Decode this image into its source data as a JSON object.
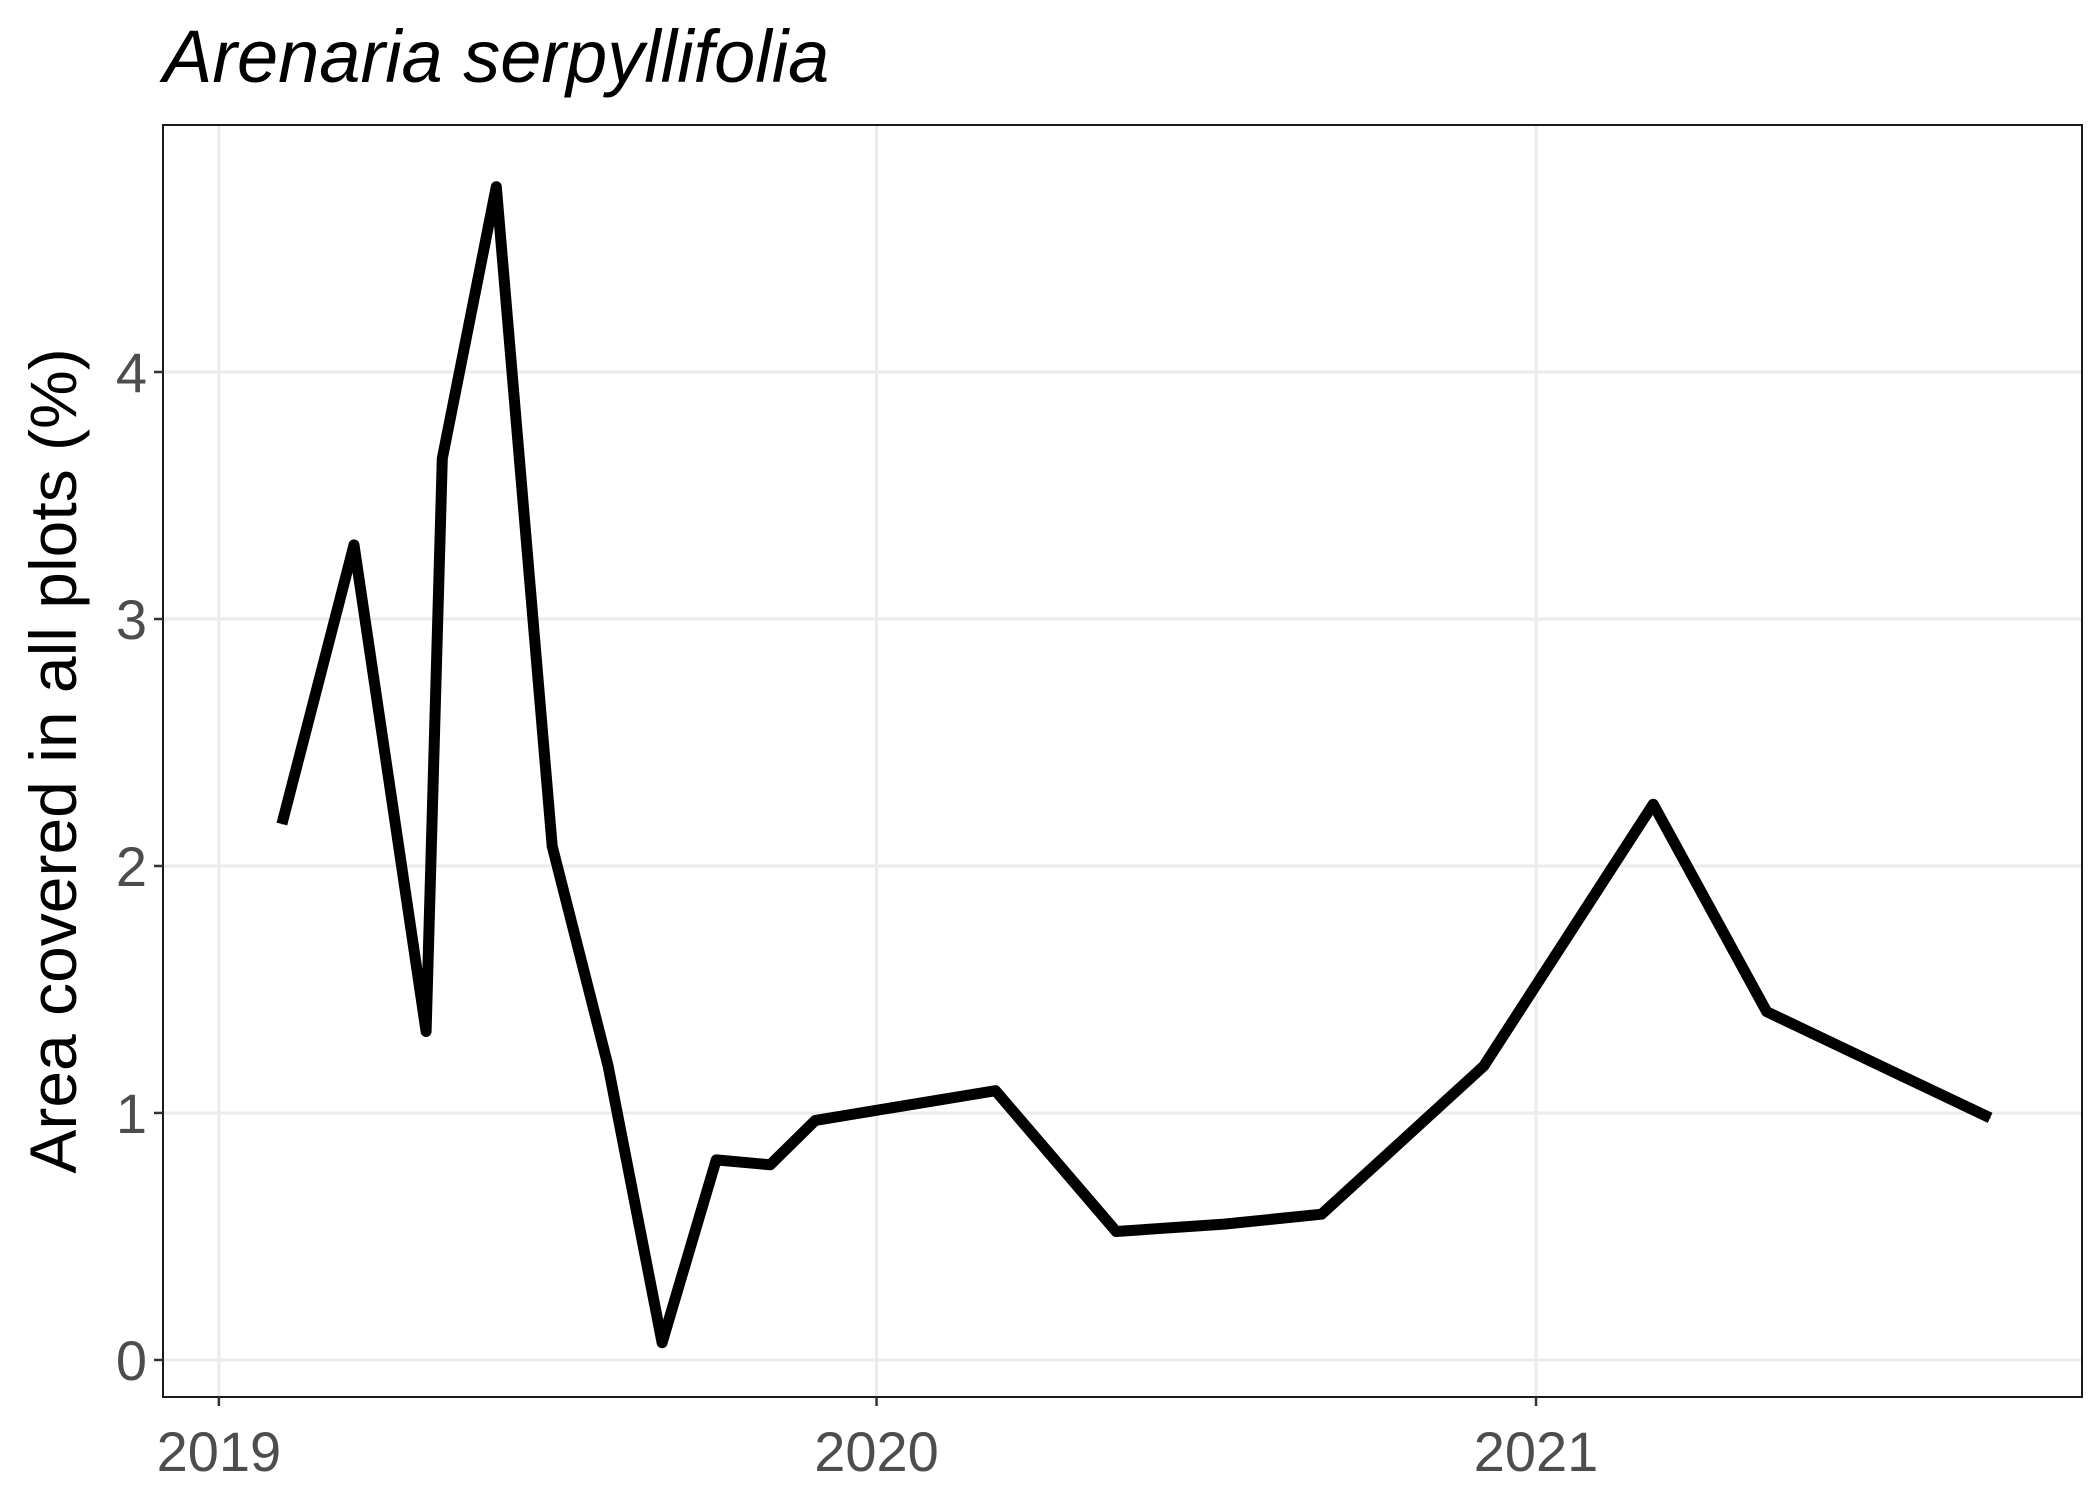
{
  "chart_data": {
    "type": "line",
    "title": "Arenaria serpyllifolia",
    "xlabel": "",
    "ylabel": "Area covered in all plots (%)",
    "x_type": "date",
    "xlim": [
      "2018-12-01",
      "2021-10-31"
    ],
    "ylim": [
      -0.15,
      5.0
    ],
    "x_ticks": [
      {
        "label": "2019",
        "date": "2019-01-01"
      },
      {
        "label": "2020",
        "date": "2020-01-01"
      },
      {
        "label": "2021",
        "date": "2021-01-01"
      }
    ],
    "y_ticks": [
      0,
      1,
      2,
      3,
      4
    ],
    "grid": true,
    "legend": "none",
    "series": [
      {
        "color": "#000000",
        "points": [
          {
            "x": "2019-02-05",
            "y": 2.17
          },
          {
            "x": "2019-03-17",
            "y": 3.3
          },
          {
            "x": "2019-04-26",
            "y": 1.33
          },
          {
            "x": "2019-05-05",
            "y": 3.65
          },
          {
            "x": "2019-06-04",
            "y": 4.75
          },
          {
            "x": "2019-07-05",
            "y": 2.08
          },
          {
            "x": "2019-08-05",
            "y": 1.19
          },
          {
            "x": "2019-09-04",
            "y": 0.07
          },
          {
            "x": "2019-10-04",
            "y": 0.81
          },
          {
            "x": "2019-11-03",
            "y": 0.79
          },
          {
            "x": "2019-11-28",
            "y": 0.97
          },
          {
            "x": "2020-03-07",
            "y": 1.09
          },
          {
            "x": "2020-05-13",
            "y": 0.52
          },
          {
            "x": "2020-07-12",
            "y": 0.55
          },
          {
            "x": "2020-09-04",
            "y": 0.59
          },
          {
            "x": "2020-12-03",
            "y": 1.19
          },
          {
            "x": "2021-03-07",
            "y": 2.25
          },
          {
            "x": "2021-05-09",
            "y": 1.41
          },
          {
            "x": "2021-09-10",
            "y": 0.98
          }
        ]
      }
    ]
  }
}
